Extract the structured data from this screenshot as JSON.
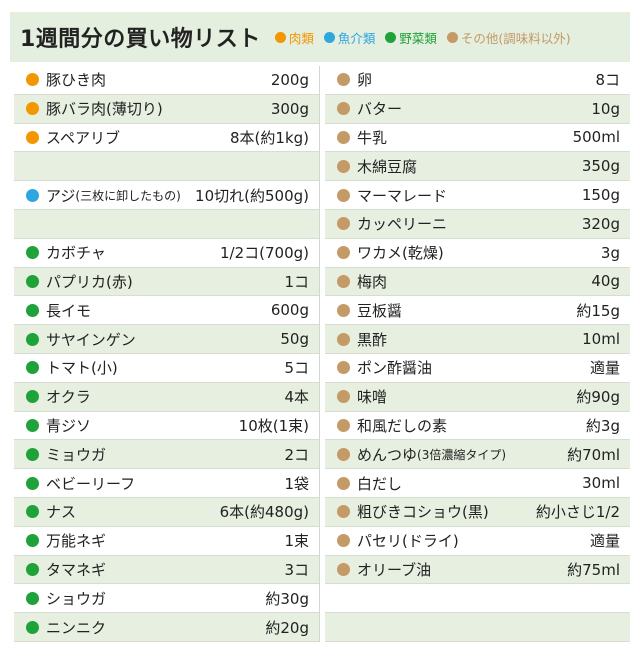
{
  "title": "1週間分の買い物リスト",
  "colors": {
    "meat": "#f39700",
    "fish": "#2ea7e0",
    "veg": "#1fa23a",
    "other": "#c49a66"
  },
  "legend": [
    {
      "label": "肉類",
      "cat": "meat",
      "color": "#f39700"
    },
    {
      "label": "魚介類",
      "cat": "fish",
      "color": "#2ea7e0"
    },
    {
      "label": "野菜類",
      "cat": "veg",
      "color": "#1fa23a"
    },
    {
      "label": "その他(調味料以外)",
      "cat": "other",
      "color": "#c49a66"
    }
  ],
  "left": [
    {
      "name": "豚ひき肉",
      "qty": "200g",
      "cat": "meat"
    },
    {
      "name": "豚バラ肉(薄切り)",
      "qty": "300g",
      "cat": "meat"
    },
    {
      "name": "スペアリブ",
      "qty": "8本(約1kg)",
      "cat": "meat"
    },
    {
      "name": "",
      "qty": "",
      "cat": ""
    },
    {
      "name": "アジ",
      "note": "(三枚に卸したもの)",
      "qty": "10切れ(約500g)",
      "cat": "fish"
    },
    {
      "name": "",
      "qty": "",
      "cat": ""
    },
    {
      "name": "カボチャ",
      "qty": "1/2コ(700g)",
      "cat": "veg"
    },
    {
      "name": "パプリカ(赤)",
      "qty": "1コ",
      "cat": "veg"
    },
    {
      "name": "長イモ",
      "qty": "600g",
      "cat": "veg"
    },
    {
      "name": "サヤインゲン",
      "qty": "50g",
      "cat": "veg"
    },
    {
      "name": "トマト(小)",
      "qty": "5コ",
      "cat": "veg"
    },
    {
      "name": "オクラ",
      "qty": "4本",
      "cat": "veg"
    },
    {
      "name": "青ジソ",
      "qty": "10枚(1束)",
      "cat": "veg"
    },
    {
      "name": "ミョウガ",
      "qty": "2コ",
      "cat": "veg"
    },
    {
      "name": "ベビーリーフ",
      "qty": "1袋",
      "cat": "veg"
    },
    {
      "name": "ナス",
      "qty": "6本(約480g)",
      "cat": "veg"
    },
    {
      "name": "万能ネギ",
      "qty": "1束",
      "cat": "veg"
    },
    {
      "name": "タマネギ",
      "qty": "3コ",
      "cat": "veg"
    },
    {
      "name": "ショウガ",
      "qty": "約30g",
      "cat": "veg"
    },
    {
      "name": "ニンニク",
      "qty": "約20g",
      "cat": "veg"
    }
  ],
  "right": [
    {
      "name": "卵",
      "qty": "8コ",
      "cat": "other"
    },
    {
      "name": "バター",
      "qty": "10g",
      "cat": "other"
    },
    {
      "name": "牛乳",
      "qty": "500ml",
      "cat": "other"
    },
    {
      "name": "木綿豆腐",
      "qty": "350g",
      "cat": "other"
    },
    {
      "name": "マーマレード",
      "qty": "150g",
      "cat": "other"
    },
    {
      "name": "カッペリーニ",
      "qty": "320g",
      "cat": "other"
    },
    {
      "name": "ワカメ(乾燥)",
      "qty": "3g",
      "cat": "other"
    },
    {
      "name": "梅肉",
      "qty": "40g",
      "cat": "other"
    },
    {
      "name": "豆板醤",
      "qty": "約15g",
      "cat": "other"
    },
    {
      "name": "黒酢",
      "qty": "10ml",
      "cat": "other"
    },
    {
      "name": "ポン酢醤油",
      "qty": "適量",
      "cat": "other"
    },
    {
      "name": "味噌",
      "qty": "約90g",
      "cat": "other"
    },
    {
      "name": "和風だしの素",
      "qty": "約3g",
      "cat": "other"
    },
    {
      "name": "めんつゆ",
      "note": "(3倍濃縮タイプ)",
      "qty": "約70ml",
      "cat": "other"
    },
    {
      "name": "白だし",
      "qty": "30ml",
      "cat": "other"
    },
    {
      "name": "粗びきコショウ(黒)",
      "qty": "約小さじ1/2",
      "cat": "other"
    },
    {
      "name": "パセリ(ドライ)",
      "qty": "適量",
      "cat": "other"
    },
    {
      "name": "オリーブ油",
      "qty": "約75ml",
      "cat": "other"
    },
    {
      "name": "",
      "qty": "",
      "cat": ""
    },
    {
      "name": "",
      "qty": "",
      "cat": ""
    }
  ]
}
